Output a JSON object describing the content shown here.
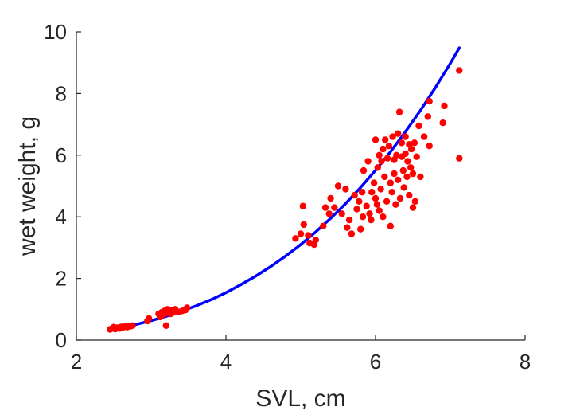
{
  "chart_data": {
    "type": "scatter",
    "title": "",
    "xlabel": "SVL, cm",
    "ylabel": "wet weight, g",
    "xlim": [
      2,
      8
    ],
    "ylim": [
      0,
      10
    ],
    "x_ticks": [
      "2",
      "4",
      "6",
      "8"
    ],
    "y_ticks": [
      "0",
      "2",
      "4",
      "6",
      "8",
      "10"
    ],
    "grid": false,
    "series": [
      {
        "kind": "points",
        "color": "#ff0000",
        "points": [
          [
            2.45,
            0.35
          ],
          [
            2.48,
            0.38
          ],
          [
            2.5,
            0.42
          ],
          [
            2.52,
            0.36
          ],
          [
            2.55,
            0.4
          ],
          [
            2.58,
            0.38
          ],
          [
            2.6,
            0.43
          ],
          [
            2.62,
            0.41
          ],
          [
            2.65,
            0.44
          ],
          [
            2.68,
            0.42
          ],
          [
            2.7,
            0.46
          ],
          [
            2.72,
            0.45
          ],
          [
            2.75,
            0.47
          ],
          [
            2.95,
            0.62
          ],
          [
            2.97,
            0.7
          ],
          [
            3.1,
            0.85
          ],
          [
            3.12,
            0.75
          ],
          [
            3.14,
            0.9
          ],
          [
            3.16,
            0.82
          ],
          [
            3.18,
            0.95
          ],
          [
            3.2,
            0.88
          ],
          [
            3.2,
            0.47
          ],
          [
            3.22,
            1.0
          ],
          [
            3.24,
            0.92
          ],
          [
            3.26,
            0.85
          ],
          [
            3.28,
            0.97
          ],
          [
            3.3,
            0.9
          ],
          [
            3.32,
            1.0
          ],
          [
            3.38,
            0.92
          ],
          [
            3.42,
            0.95
          ],
          [
            3.46,
            0.98
          ],
          [
            3.48,
            1.05
          ],
          [
            4.93,
            3.3
          ],
          [
            5.0,
            3.45
          ],
          [
            5.03,
            4.35
          ],
          [
            5.04,
            3.75
          ],
          [
            5.1,
            3.4
          ],
          [
            5.12,
            3.15
          ],
          [
            5.18,
            3.1
          ],
          [
            5.2,
            3.25
          ],
          [
            5.3,
            3.7
          ],
          [
            5.33,
            4.3
          ],
          [
            5.38,
            4.1
          ],
          [
            5.4,
            4.6
          ],
          [
            5.45,
            4.3
          ],
          [
            5.5,
            5.0
          ],
          [
            5.55,
            4.1
          ],
          [
            5.6,
            4.9
          ],
          [
            5.62,
            3.65
          ],
          [
            5.65,
            3.9
          ],
          [
            5.68,
            3.45
          ],
          [
            5.72,
            4.7
          ],
          [
            5.75,
            4.25
          ],
          [
            5.78,
            4.5
          ],
          [
            5.8,
            3.6
          ],
          [
            5.82,
            4.8
          ],
          [
            5.83,
            4.0
          ],
          [
            5.84,
            5.5
          ],
          [
            5.88,
            4.35
          ],
          [
            5.9,
            5.8
          ],
          [
            5.92,
            4.1
          ],
          [
            5.94,
            3.9
          ],
          [
            5.95,
            4.8
          ],
          [
            5.98,
            5.1
          ],
          [
            6.0,
            4.6
          ],
          [
            6.0,
            6.5
          ],
          [
            6.02,
            4.4
          ],
          [
            6.03,
            5.6
          ],
          [
            6.05,
            4.2
          ],
          [
            6.05,
            6.0
          ],
          [
            6.07,
            4.9
          ],
          [
            6.08,
            5.8
          ],
          [
            6.1,
            6.2
          ],
          [
            6.1,
            4.0
          ],
          [
            6.12,
            5.3
          ],
          [
            6.13,
            6.5
          ],
          [
            6.15,
            4.5
          ],
          [
            6.16,
            5.9
          ],
          [
            6.18,
            6.3
          ],
          [
            6.2,
            3.7
          ],
          [
            6.2,
            5.1
          ],
          [
            6.22,
            4.8
          ],
          [
            6.23,
            6.6
          ],
          [
            6.25,
            5.4
          ],
          [
            6.25,
            5.85
          ],
          [
            6.27,
            4.4
          ],
          [
            6.28,
            6.0
          ],
          [
            6.3,
            6.7
          ],
          [
            6.3,
            5.2
          ],
          [
            6.32,
            7.4
          ],
          [
            6.33,
            4.6
          ],
          [
            6.35,
            5.95
          ],
          [
            6.35,
            6.4
          ],
          [
            6.37,
            5.5
          ],
          [
            6.38,
            4.95
          ],
          [
            6.4,
            6.6
          ],
          [
            6.4,
            6.05
          ],
          [
            6.42,
            5.3
          ],
          [
            6.43,
            5.8
          ],
          [
            6.45,
            4.7
          ],
          [
            6.45,
            6.35
          ],
          [
            6.47,
            5.6
          ],
          [
            6.48,
            6.2
          ],
          [
            6.5,
            4.3
          ],
          [
            6.5,
            5.4
          ],
          [
            6.52,
            6.4
          ],
          [
            6.53,
            4.5
          ],
          [
            6.55,
            5.95
          ],
          [
            6.58,
            6.95
          ],
          [
            6.6,
            5.3
          ],
          [
            6.65,
            6.6
          ],
          [
            6.7,
            7.25
          ],
          [
            6.72,
            6.3
          ],
          [
            6.72,
            7.75
          ],
          [
            6.9,
            7.05
          ],
          [
            6.92,
            7.6
          ],
          [
            7.12,
            8.75
          ],
          [
            7.12,
            5.9
          ]
        ]
      },
      {
        "kind": "fit-curve",
        "color": "#0000ff",
        "x": [
          2.45,
          2.6,
          2.8,
          3.0,
          3.2,
          3.4,
          3.6,
          3.8,
          4.0,
          4.2,
          4.4,
          4.6,
          4.8,
          5.0,
          5.2,
          5.4,
          5.6,
          5.8,
          6.0,
          6.2,
          6.4,
          6.6,
          6.8,
          7.0,
          7.12
        ],
        "y": [
          0.33,
          0.4,
          0.51,
          0.63,
          0.77,
          0.93,
          1.11,
          1.31,
          1.54,
          1.8,
          2.08,
          2.39,
          2.73,
          3.1,
          3.51,
          3.95,
          4.43,
          4.95,
          5.51,
          6.11,
          6.76,
          7.45,
          8.19,
          8.98,
          9.48
        ]
      }
    ]
  }
}
